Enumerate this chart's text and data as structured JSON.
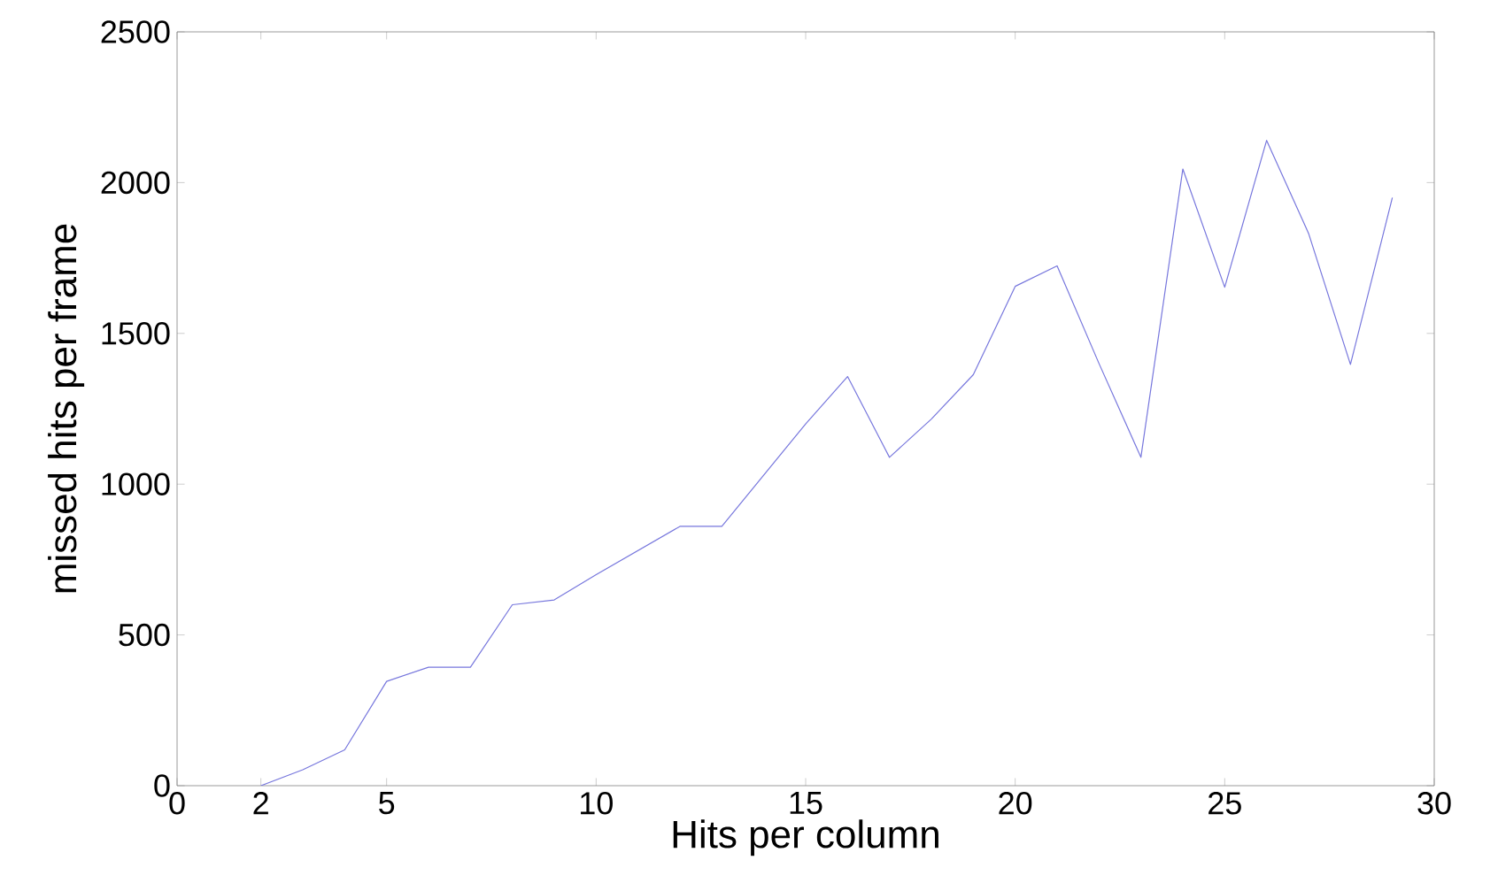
{
  "chart_data": {
    "type": "line",
    "xlabel": "Hits per column",
    "ylabel": "missed hits per frame",
    "x": [
      2,
      3,
      4,
      5,
      6,
      7,
      8,
      9,
      10,
      11,
      12,
      13,
      14,
      15,
      16,
      17,
      18,
      19,
      20,
      21,
      22,
      23,
      24,
      25,
      26,
      27,
      28,
      29
    ],
    "series": [
      {
        "color": "#7777dd",
        "values": [
          0,
          53,
          119,
          346,
          393,
          393,
          600,
          616,
          700,
          780,
          860,
          860,
          1030,
          1200,
          1357,
          1089,
          1216,
          1363,
          1656,
          1724,
          1400,
          1089,
          2045,
          1653,
          2140,
          1832,
          1397,
          1950
        ]
      }
    ],
    "xlim": [
      0,
      30
    ],
    "ylim": [
      0,
      2500
    ],
    "xticks": [
      0,
      2,
      5,
      10,
      15,
      20,
      25,
      30
    ],
    "yticks": [
      0,
      500,
      1000,
      1500,
      2000,
      2500
    ],
    "grid": false,
    "marker": "none",
    "line_style": "solid"
  }
}
